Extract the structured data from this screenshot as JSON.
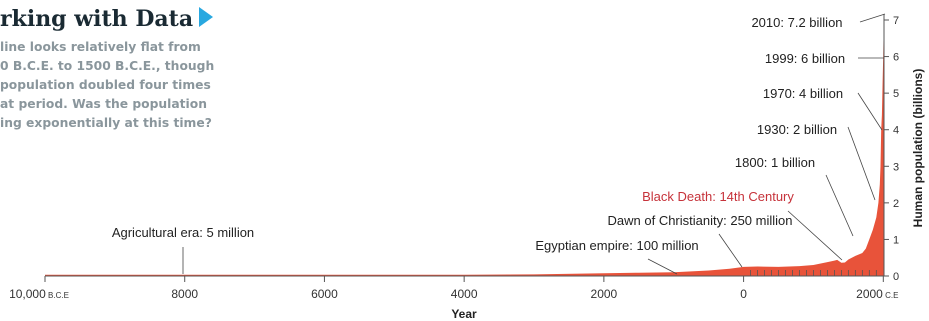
{
  "heading": {
    "title": "rking with Data",
    "lines": [
      "line looks relatively flat from",
      "0 B.C.E. to 1500 B.C.E., though",
      "population doubled four times",
      "at period. Was the population",
      "ing exponentially at this time?"
    ]
  },
  "chart_data": {
    "type": "area",
    "xlabel": "Year",
    "ylabel": "Human population (billions)",
    "xlim": [
      -10000,
      2010
    ],
    "ylim": [
      0,
      7
    ],
    "color": "#e8533a",
    "annotation_color": "#c6323a",
    "x_ticks": [
      {
        "value": -10000,
        "label": "10,000",
        "suffix": "B.C.E"
      },
      {
        "value": -8000,
        "label": "8000",
        "suffix": ""
      },
      {
        "value": -6000,
        "label": "6000",
        "suffix": ""
      },
      {
        "value": -4000,
        "label": "4000",
        "suffix": ""
      },
      {
        "value": -2000,
        "label": "2000",
        "suffix": ""
      },
      {
        "value": 0,
        "label": "0",
        "suffix": ""
      },
      {
        "value": 2000,
        "label": "2000",
        "suffix": "C.E"
      }
    ],
    "y_ticks": [
      0,
      1,
      2,
      3,
      4,
      5,
      6,
      7
    ],
    "series": [
      {
        "x": [
          -10000,
          -8000,
          -6000,
          -5000,
          -4000,
          -3000,
          -2000,
          -1500,
          -1000,
          -500,
          -200,
          0,
          200,
          500,
          800,
          1000,
          1200,
          1300,
          1340,
          1400,
          1450,
          1500,
          1600,
          1700,
          1750,
          1800,
          1850,
          1900,
          1930,
          1950,
          1960,
          1970,
          1980,
          1990,
          1999,
          2010
        ],
        "y": [
          0.005,
          0.01,
          0.015,
          0.02,
          0.03,
          0.045,
          0.075,
          0.09,
          0.1,
          0.15,
          0.2,
          0.25,
          0.26,
          0.25,
          0.27,
          0.3,
          0.38,
          0.42,
          0.44,
          0.36,
          0.37,
          0.45,
          0.55,
          0.63,
          0.75,
          1,
          1.26,
          1.6,
          2,
          2.5,
          3,
          4,
          4.4,
          5.3,
          6,
          7.2
        ]
      }
    ],
    "annotations": [
      {
        "text": "Agricultural era: 5 million",
        "x": -8000,
        "y": 0.005,
        "highlight": false
      },
      {
        "text": "Egyptian empire: 100 million",
        "x": -1000,
        "y": 0.1,
        "highlight": false
      },
      {
        "text": "Dawn of Christianity: 250 million",
        "x": 0,
        "y": 0.25,
        "highlight": false
      },
      {
        "text": "Black Death: 14th Century",
        "x": 1340,
        "y": 0.44,
        "highlight": true
      },
      {
        "text": "1800: 1 billion",
        "x": 1800,
        "y": 1,
        "highlight": false
      },
      {
        "text": "1930: 2 billion",
        "x": 1930,
        "y": 2,
        "highlight": false
      },
      {
        "text": "1970: 4 billion",
        "x": 1970,
        "y": 4,
        "highlight": false
      },
      {
        "text": "1999: 6 billion",
        "x": 1999,
        "y": 6,
        "highlight": false
      },
      {
        "text": "2010: 7.2 billion",
        "x": 2010,
        "y": 7.2,
        "highlight": false
      }
    ]
  }
}
